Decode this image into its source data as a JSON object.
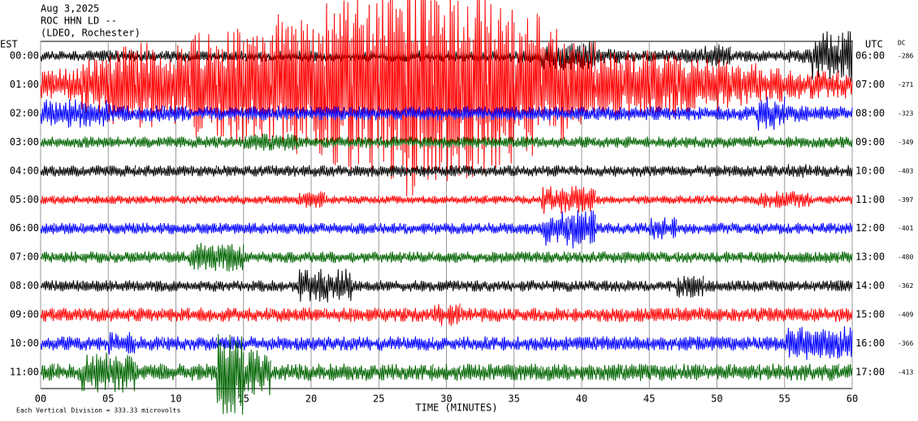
{
  "chart_data": {
    "type": "helicorder",
    "header": [
      "Aug 3,2025",
      "ROC HHN LD --",
      "(LDEO, Rochester)"
    ],
    "left_label": "EST",
    "right_label": "UTC",
    "dc_label": "DC",
    "xlabel": "TIME (MINUTES)",
    "note": "Each Vertical Division =  333.33 microvolts",
    "xlim": [
      0,
      60
    ],
    "xticks": [
      {
        "value": 0,
        "label": "00"
      },
      {
        "value": 5,
        "label": "05"
      },
      10,
      15,
      20,
      25,
      30,
      35,
      40,
      45,
      50,
      55,
      60
    ],
    "x": [
      0,
      2,
      4,
      6,
      8,
      10,
      12,
      14,
      16,
      18,
      20,
      22,
      24,
      26,
      28,
      30,
      32,
      34,
      36,
      38,
      40,
      42,
      44,
      46,
      48,
      50,
      52,
      54,
      56,
      58,
      60
    ],
    "series": [
      {
        "est": "00:00",
        "utc": "06:00",
        "dc": -286,
        "color": "#000000",
        "values": [
          0.2,
          0.2,
          0.2,
          0.2,
          0.2,
          0.2,
          0.2,
          0.2,
          0.2,
          0.2,
          0.2,
          0.2,
          0.2,
          0.2,
          0.2,
          0.2,
          0.2,
          0.2,
          0.25,
          0.5,
          0.5,
          0.25,
          0.2,
          0.2,
          0.25,
          0.4,
          0.2,
          0.2,
          0.25,
          0.9,
          0.9
        ]
      },
      {
        "est": "01:00",
        "utc": "07:00",
        "dc": -271,
        "color": "#ff0000",
        "values": [
          0.5,
          0.6,
          1.0,
          1.5,
          1.5,
          1.5,
          2,
          2,
          2,
          2.5,
          2.5,
          3,
          3,
          3.5,
          4,
          3.5,
          3.5,
          3,
          2.5,
          2,
          1.5,
          1.2,
          1.2,
          1.2,
          1.0,
          1.0,
          0.8,
          0.6,
          0.5,
          0.5,
          0.5
        ]
      },
      {
        "est": "02:00",
        "utc": "08:00",
        "dc": -323,
        "color": "#0000ff",
        "values": [
          0.5,
          0.5,
          0.5,
          0.3,
          0.3,
          0.3,
          0.25,
          0.25,
          0.25,
          0.25,
          0.25,
          0.25,
          0.25,
          0.25,
          0.25,
          0.25,
          0.25,
          0.25,
          0.25,
          0.25,
          0.25,
          0.25,
          0.25,
          0.25,
          0.25,
          0.25,
          0.25,
          0.6,
          0.3,
          0.25,
          0.25
        ]
      },
      {
        "est": "03:00",
        "utc": "09:00",
        "dc": -349,
        "color": "#006400",
        "values": [
          0.2,
          0.2,
          0.2,
          0.2,
          0.2,
          0.2,
          0.2,
          0.2,
          0.3,
          0.3,
          0.2,
          0.2,
          0.2,
          0.2,
          0.2,
          0.2,
          0.2,
          0.2,
          0.2,
          0.2,
          0.2,
          0.2,
          0.2,
          0.2,
          0.2,
          0.2,
          0.2,
          0.2,
          0.2,
          0.2,
          0.2
        ]
      },
      {
        "est": "04:00",
        "utc": "10:00",
        "dc": -403,
        "color": "#000000",
        "values": [
          0.2,
          0.2,
          0.2,
          0.2,
          0.2,
          0.2,
          0.2,
          0.2,
          0.2,
          0.2,
          0.2,
          0.2,
          0.2,
          0.2,
          0.2,
          0.2,
          0.2,
          0.2,
          0.2,
          0.2,
          0.2,
          0.2,
          0.2,
          0.2,
          0.2,
          0.2,
          0.2,
          0.2,
          0.25,
          0.2,
          0.2
        ]
      },
      {
        "est": "05:00",
        "utc": "11:00",
        "dc": -397,
        "color": "#ff0000",
        "values": [
          0.15,
          0.15,
          0.15,
          0.15,
          0.15,
          0.15,
          0.15,
          0.15,
          0.15,
          0.15,
          0.3,
          0.15,
          0.15,
          0.15,
          0.15,
          0.15,
          0.15,
          0.15,
          0.15,
          0.5,
          0.5,
          0.15,
          0.15,
          0.15,
          0.15,
          0.15,
          0.15,
          0.3,
          0.3,
          0.15,
          0.15
        ]
      },
      {
        "est": "06:00",
        "utc": "12:00",
        "dc": -401,
        "color": "#0000ff",
        "values": [
          0.2,
          0.2,
          0.2,
          0.2,
          0.2,
          0.2,
          0.2,
          0.2,
          0.2,
          0.2,
          0.2,
          0.2,
          0.2,
          0.2,
          0.2,
          0.2,
          0.2,
          0.2,
          0.2,
          0.6,
          0.7,
          0.2,
          0.2,
          0.4,
          0.2,
          0.2,
          0.2,
          0.2,
          0.2,
          0.2,
          0.2
        ]
      },
      {
        "est": "07:00",
        "utc": "13:00",
        "dc": -480,
        "color": "#006400",
        "values": [
          0.2,
          0.2,
          0.2,
          0.2,
          0.2,
          0.2,
          0.5,
          0.5,
          0.2,
          0.2,
          0.2,
          0.2,
          0.2,
          0.2,
          0.2,
          0.2,
          0.2,
          0.2,
          0.2,
          0.2,
          0.2,
          0.2,
          0.2,
          0.2,
          0.2,
          0.2,
          0.2,
          0.2,
          0.2,
          0.2,
          0.2
        ]
      },
      {
        "est": "08:00",
        "utc": "14:00",
        "dc": -362,
        "color": "#000000",
        "values": [
          0.2,
          0.2,
          0.2,
          0.2,
          0.2,
          0.2,
          0.2,
          0.2,
          0.2,
          0.2,
          0.6,
          0.6,
          0.2,
          0.2,
          0.2,
          0.2,
          0.2,
          0.2,
          0.2,
          0.2,
          0.2,
          0.2,
          0.2,
          0.2,
          0.4,
          0.2,
          0.2,
          0.2,
          0.2,
          0.2,
          0.2
        ]
      },
      {
        "est": "09:00",
        "utc": "15:00",
        "dc": -409,
        "color": "#ff0000",
        "values": [
          0.25,
          0.25,
          0.25,
          0.25,
          0.25,
          0.25,
          0.25,
          0.25,
          0.25,
          0.25,
          0.25,
          0.25,
          0.25,
          0.25,
          0.25,
          0.4,
          0.25,
          0.25,
          0.25,
          0.25,
          0.25,
          0.25,
          0.25,
          0.25,
          0.25,
          0.25,
          0.25,
          0.25,
          0.25,
          0.25,
          0.25
        ]
      },
      {
        "est": "10:00",
        "utc": "16:00",
        "dc": -366,
        "color": "#0000ff",
        "values": [
          0.25,
          0.25,
          0.25,
          0.4,
          0.25,
          0.25,
          0.25,
          0.25,
          0.25,
          0.25,
          0.25,
          0.25,
          0.25,
          0.25,
          0.25,
          0.25,
          0.25,
          0.25,
          0.25,
          0.25,
          0.25,
          0.25,
          0.25,
          0.25,
          0.25,
          0.25,
          0.25,
          0.25,
          0.6,
          0.6,
          0.6
        ]
      },
      {
        "est": "11:00",
        "utc": "17:00",
        "dc": -413,
        "color": "#006400",
        "values": [
          0.3,
          0.3,
          0.7,
          0.7,
          0.3,
          0.3,
          0.3,
          1.5,
          0.8,
          0.3,
          0.3,
          0.3,
          0.3,
          0.3,
          0.3,
          0.3,
          0.3,
          0.3,
          0.3,
          0.3,
          0.3,
          0.3,
          0.3,
          0.3,
          0.3,
          0.3,
          0.3,
          0.3,
          0.3,
          0.3,
          0.3
        ]
      }
    ]
  }
}
